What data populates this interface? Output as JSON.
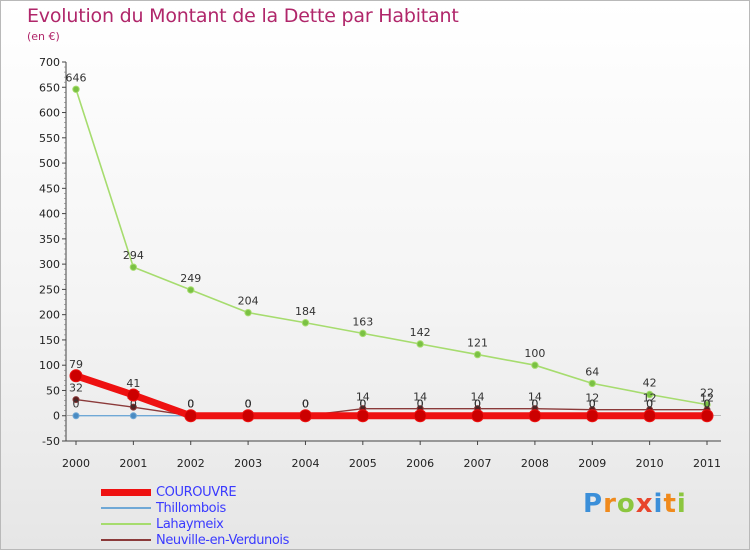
{
  "title": "Evolution du Montant de la Dette par Habitant",
  "subtitle": "(en €)",
  "logo": {
    "text": "Proxiti",
    "letters": [
      "P",
      "r",
      "o",
      "x",
      "i",
      "t",
      "i"
    ],
    "colors": [
      "#3b8fd9",
      "#f08a1c",
      "#8cc63f",
      "#e8452c",
      "#3b8fd9",
      "#f08a1c",
      "#8cc63f"
    ]
  },
  "chart_data": {
    "type": "line",
    "x": [
      "2000",
      "2001",
      "2002",
      "2003",
      "2004",
      "2005",
      "2006",
      "2007",
      "2008",
      "2009",
      "2010",
      "2011"
    ],
    "ylim": [
      -50,
      700
    ],
    "yticks": [
      -50,
      0,
      50,
      100,
      150,
      200,
      250,
      300,
      350,
      400,
      450,
      500,
      550,
      600,
      650,
      700
    ],
    "grid": false,
    "legend_position": "bottom-left",
    "series": [
      {
        "name": "Lahaymeix",
        "color": "#a6dc6e",
        "marker_color": "#7ac143",
        "values": [
          646,
          294,
          249,
          204,
          184,
          163,
          142,
          121,
          100,
          64,
          42,
          22
        ],
        "labels": [
          "646",
          "294",
          "249",
          "204",
          "184",
          "163",
          "142",
          "121",
          "100",
          "64",
          "42",
          "22"
        ]
      },
      {
        "name": "Neuville-en-Verdunois",
        "color": "#8b3a3a",
        "marker_color": "#5a1f1f",
        "values": [
          32,
          17,
          0,
          0,
          0,
          14,
          14,
          14,
          14,
          12,
          12,
          12
        ],
        "labels": [
          "32",
          "17",
          "0",
          "0",
          "0",
          "14",
          "14",
          "14",
          "14",
          "12",
          "12",
          "12"
        ]
      },
      {
        "name": "Thillombois",
        "color": "#6fa8d6",
        "marker_color": "#4a8bc2",
        "values": [
          0,
          0,
          0,
          0,
          0,
          0,
          0,
          0,
          0,
          0,
          0,
          0
        ],
        "labels": [
          "0",
          "0",
          "0",
          "0",
          "0",
          "0",
          "0",
          "0",
          "0",
          "0",
          "0",
          "0"
        ]
      },
      {
        "name": "COUROUVRE",
        "color": "#ee1111",
        "marker_color": "#cc0000",
        "values": [
          79,
          41,
          0,
          0,
          0,
          0,
          0,
          0,
          0,
          0,
          0,
          0
        ],
        "labels": [
          "79",
          "41",
          "0",
          "0",
          "0",
          "0",
          "0",
          "0",
          "0",
          "0",
          "0",
          "0"
        ]
      }
    ]
  },
  "legend": [
    {
      "name": "COUROUVRE",
      "color": "#ee1111",
      "thickness": 7
    },
    {
      "name": "Thillombois",
      "color": "#6fa8d6",
      "thickness": 2
    },
    {
      "name": "Lahaymeix",
      "color": "#a6dc6e",
      "thickness": 2
    },
    {
      "name": "Neuville-en-Verdunois",
      "color": "#8b3a3a",
      "thickness": 2
    }
  ]
}
